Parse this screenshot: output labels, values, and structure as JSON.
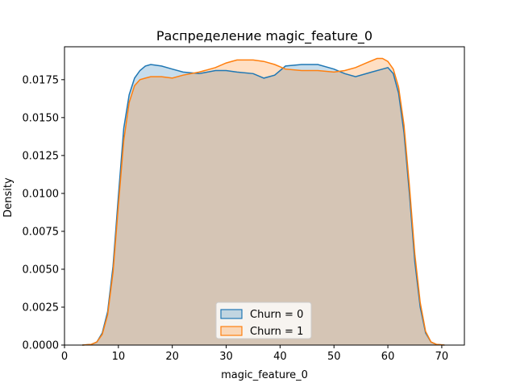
{
  "chart_data": {
    "type": "area",
    "title": "Распределение magic_feature_0",
    "xlabel": "magic_feature_0",
    "ylabel": "Density",
    "xlim": [
      0,
      74.2
    ],
    "ylim": [
      0,
      0.01967
    ],
    "xticks": [
      0,
      10,
      20,
      30,
      40,
      50,
      60,
      70
    ],
    "xtick_labels": [
      "0",
      "10",
      "20",
      "30",
      "40",
      "50",
      "60",
      "70"
    ],
    "yticks": [
      0,
      0.0025,
      0.005,
      0.0075,
      0.01,
      0.0125,
      0.015,
      0.0175
    ],
    "ytick_labels": [
      "0.0000",
      "0.0025",
      "0.0050",
      "0.0075",
      "0.0100",
      "0.0125",
      "0.0150",
      "0.0175"
    ],
    "grid": false,
    "legend_position": "lower center",
    "series": [
      {
        "name": "Churn = 0",
        "color": "#1f77b4",
        "fill": "rgba(31,119,180,0.25)",
        "x": [
          3.3,
          5,
          6,
          7,
          8,
          9,
          10,
          11,
          12,
          13,
          14,
          15,
          16,
          18,
          20,
          22,
          25,
          28,
          30,
          32,
          35,
          37,
          39,
          41,
          44,
          47,
          50,
          52,
          54,
          57,
          59,
          60,
          61,
          62,
          63,
          64,
          65,
          66,
          67,
          68,
          69,
          70.5
        ],
        "y": [
          0.0,
          5e-05,
          0.0002,
          0.0008,
          0.0022,
          0.0052,
          0.0098,
          0.0143,
          0.0165,
          0.0176,
          0.0181,
          0.0184,
          0.0185,
          0.0184,
          0.0182,
          0.018,
          0.0179,
          0.0181,
          0.0181,
          0.018,
          0.0179,
          0.0176,
          0.0178,
          0.0184,
          0.0185,
          0.0185,
          0.0182,
          0.0179,
          0.0177,
          0.018,
          0.0182,
          0.0183,
          0.0179,
          0.0166,
          0.014,
          0.01,
          0.0055,
          0.0025,
          0.0008,
          0.0002,
          5e-05,
          0.0
        ]
      },
      {
        "name": "Churn = 1",
        "color": "#ff7f0e",
        "fill": "rgba(255,127,14,0.25)",
        "x": [
          3.3,
          5,
          6,
          7,
          8,
          9,
          10,
          11,
          12,
          13,
          14,
          15,
          16,
          18,
          20,
          22,
          25,
          28,
          30,
          32,
          35,
          37,
          39,
          41,
          44,
          47,
          50,
          52,
          54,
          56,
          58,
          59,
          60,
          61,
          62,
          63,
          64,
          65,
          66,
          67,
          68,
          69,
          70.5
        ],
        "y": [
          0.0,
          5e-05,
          0.0002,
          0.0007,
          0.002,
          0.0048,
          0.0092,
          0.0135,
          0.016,
          0.0171,
          0.0175,
          0.0176,
          0.0177,
          0.0177,
          0.0176,
          0.0178,
          0.018,
          0.0183,
          0.0186,
          0.0188,
          0.0188,
          0.0187,
          0.0185,
          0.0182,
          0.0181,
          0.0181,
          0.018,
          0.0181,
          0.0183,
          0.0186,
          0.0189,
          0.0189,
          0.0187,
          0.0182,
          0.017,
          0.0145,
          0.0105,
          0.006,
          0.0028,
          0.0009,
          0.0002,
          5e-05,
          0.0
        ]
      }
    ]
  }
}
